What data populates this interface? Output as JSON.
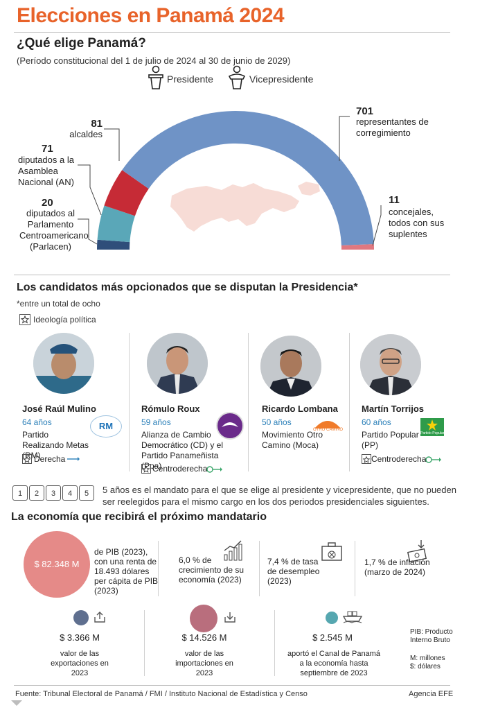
{
  "header": {
    "title": "Elecciones en Panamá 2024",
    "question": "¿Qué elige Panamá?",
    "period": "(Período constitucional del 1 de julio de 2024 al 30 de junio de 2029)",
    "legend_presidente": "Presidente",
    "legend_vicepresidente": "Vicepresidente"
  },
  "seats": {
    "alcaldes": {
      "num": "81",
      "label": "alcaldes",
      "color": "#c62b36"
    },
    "diputados_an": {
      "num": "71",
      "label": "diputados a la Asamblea Nacional (AN)",
      "color": "#5aa7b8"
    },
    "parlacen": {
      "num": "20",
      "label": "diputados al Parlamento Centroamericano (Parlacen)",
      "color": "#2f4e7a"
    },
    "representantes": {
      "num": "701",
      "label": "representantes de corregimiento",
      "color": "#6f93c6"
    },
    "concejales": {
      "num": "11",
      "label": "concejales, todos con sus suplentes",
      "color": "#e07880"
    },
    "map_color": "#f7dcd6"
  },
  "candidates_section": {
    "title": "Los candidatos más opcionados que se disputan la Presidencia*",
    "note": "*entre un total de ocho",
    "ideology_legend": "Ideología política",
    "candidates": [
      {
        "name": "José Raúl Mulino",
        "age": "64 años",
        "party": "Partido Realizando Metas (RM)",
        "ideology": "Derecha",
        "logo_text": "RM"
      },
      {
        "name": "Rómulo Roux",
        "age": "59 años",
        "party": "Alianza de Cambio Democrático (CD) y el Partido Panameñista (Ppa)",
        "ideology": "Centroderecha",
        "logo_text": ""
      },
      {
        "name": "Ricardo Lombana",
        "age": "50 años",
        "party": "Movimiento Otro Camino (Moca)",
        "ideology": "",
        "logo_text": "OTRO CAMINO"
      },
      {
        "name": "Martín Torrijos",
        "age": "60 años",
        "party": "Partido Popular (PP)",
        "ideology": "Centroderecha",
        "logo_text": "Partido Popular"
      }
    ]
  },
  "term_note": "5 años es el mandato para el que se elige al presidente y vicepresidente, que no pueden ser reelegidos para el mismo cargo en los dos periodos presidenciales siguientes.",
  "term_years": [
    "1",
    "2",
    "3",
    "4",
    "5"
  ],
  "economy": {
    "title": "La economía que recibirá el próximo mandatario",
    "pib_value": "$ 82.348 M",
    "pib_text": "de PIB (2023), con una renta de 18.493 dólares per cápita de PIB (2023)",
    "growth": "6,0 % de crecimiento de su economía (2023)",
    "unemployment": "7,4 % de tasa de desempleo (2023)",
    "inflation": "1,7 % de inflación (marzo de 2024)",
    "exports_value": "$ 3.366 M",
    "exports_text": "valor de las exportaciones en 2023",
    "imports_value": "$ 14.526 M",
    "imports_text": "valor de las importaciones en 2023",
    "canal_value": "$ 2.545 M",
    "canal_text": "aportó el Canal de Panamá a la economía hasta septiembre de 2023",
    "glossary_pib": "PIB: Producto Interno Bruto",
    "glossary_units": "M: millones $: dólares",
    "pib_color": "#e58a88",
    "exports_color": "#5f6f8f",
    "imports_color": "#b96e7d",
    "canal_color": "#56a7b0"
  },
  "footer": {
    "source": "Fuente: Tribunal Electoral de Panamá / FMI / Instituto Nacional de Estadística y Censo",
    "agency": "Agencia EFE"
  }
}
